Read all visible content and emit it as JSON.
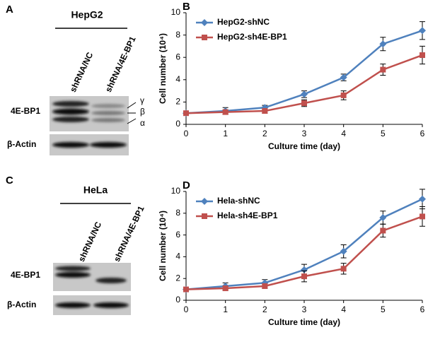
{
  "blots": [
    {
      "panel": "A",
      "cell_line": "HepG2",
      "lanes": [
        "shRNA/NC",
        "shRNA/4E-BP1"
      ],
      "rows": [
        "4E-BP1",
        "β-Actin"
      ],
      "isoforms": [
        "γ",
        "β",
        "α"
      ]
    },
    {
      "panel": "C",
      "cell_line": "HeLa",
      "lanes": [
        "shRNA/NC",
        "shRNA/4E-BP1"
      ],
      "rows": [
        "4E-BP1",
        "β-Actin"
      ]
    }
  ],
  "chart_data": [
    {
      "type": "line",
      "panel": "B",
      "x_label": "Culture time (day)",
      "y_label": "Cell number (10⁴)",
      "x": [
        0,
        1,
        2,
        3,
        4,
        5,
        6
      ],
      "xlim": [
        0,
        6
      ],
      "xticks": [
        0,
        1,
        2,
        3,
        4,
        5,
        6
      ],
      "ylim": [
        0,
        10
      ],
      "yticks": [
        0,
        2,
        4,
        6,
        8,
        10
      ],
      "legend": "upper left",
      "series": [
        {
          "name": "HepG2-shNC",
          "color": "#4f81bd",
          "marker": "diamond",
          "values": [
            1,
            1.2,
            1.5,
            2.7,
            4.2,
            7.2,
            8.4
          ],
          "errors": [
            0.1,
            0.3,
            0.2,
            0.3,
            0.3,
            0.6,
            0.8
          ]
        },
        {
          "name": "HepG2-sh4E-BP1",
          "color": "#c0504d",
          "marker": "square",
          "values": [
            1,
            1.1,
            1.2,
            1.9,
            2.6,
            4.9,
            6.2
          ],
          "errors": [
            0.1,
            0.2,
            0.2,
            0.3,
            0.4,
            0.5,
            0.8
          ]
        }
      ]
    },
    {
      "type": "line",
      "panel": "D",
      "x_label": "Culture time (day)",
      "y_label": "Cell number (10⁴)",
      "x": [
        0,
        1,
        2,
        3,
        4,
        5,
        6
      ],
      "xlim": [
        0,
        6
      ],
      "xticks": [
        0,
        1,
        2,
        3,
        4,
        5,
        6
      ],
      "ylim": [
        0,
        10
      ],
      "yticks": [
        0,
        2,
        4,
        6,
        8,
        10
      ],
      "legend": "upper left",
      "series": [
        {
          "name": "Hela-shNC",
          "color": "#4f81bd",
          "marker": "diamond",
          "values": [
            1,
            1.3,
            1.6,
            2.8,
            4.5,
            7.6,
            9.3
          ],
          "errors": [
            0.2,
            0.3,
            0.3,
            0.5,
            0.6,
            0.6,
            0.9
          ]
        },
        {
          "name": "Hela-sh4E-BP1",
          "color": "#c0504d",
          "marker": "square",
          "values": [
            1,
            1.1,
            1.3,
            2.2,
            2.9,
            6.4,
            7.7
          ],
          "errors": [
            0.1,
            0.2,
            0.2,
            0.5,
            0.5,
            0.6,
            0.9
          ]
        }
      ]
    }
  ]
}
